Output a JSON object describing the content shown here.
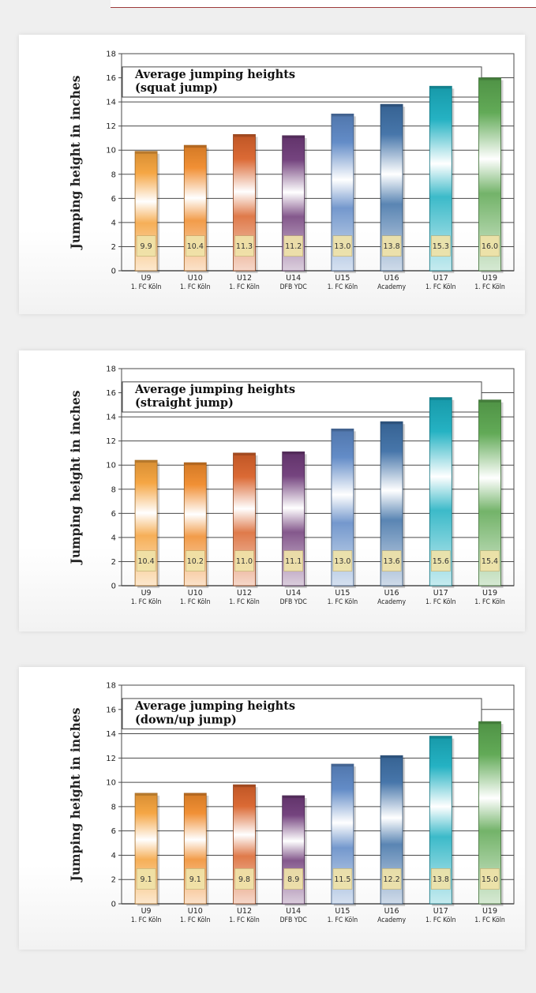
{
  "chart_data": [
    {
      "type": "bar",
      "title": "Average jumping heights",
      "subtitle": "(squat jump)",
      "ylabel": "Jumping height in inches",
      "xlabel": "",
      "ylim": [
        0,
        18
      ],
      "yticks": [
        0,
        2,
        4,
        6,
        8,
        10,
        12,
        14,
        16,
        18
      ],
      "grid": true,
      "categories": [
        "U9",
        "U10",
        "U12",
        "U14",
        "U15",
        "U16",
        "U17",
        "U19"
      ],
      "subcategories": [
        "1. FC Köln",
        "1. FC Köln",
        "1. FC Köln",
        "DFB YDC",
        "1. FC Köln",
        "Academy",
        "1. FC Köln",
        "1. FC Köln"
      ],
      "values": [
        9.9,
        10.4,
        11.3,
        11.2,
        13.0,
        13.8,
        15.3,
        16.0
      ],
      "labels": [
        "9.9",
        "10.4",
        "11.3",
        "11.2",
        "13.0",
        "13.8",
        "15.3",
        "16.0"
      ]
    },
    {
      "type": "bar",
      "title": "Average jumping heights",
      "subtitle": "(straight jump)",
      "ylabel": "Jumping height in inches",
      "xlabel": "",
      "ylim": [
        0,
        18
      ],
      "yticks": [
        0,
        2,
        4,
        6,
        8,
        10,
        12,
        14,
        16,
        18
      ],
      "grid": true,
      "categories": [
        "U9",
        "U10",
        "U12",
        "U14",
        "U15",
        "U16",
        "U17",
        "U19"
      ],
      "subcategories": [
        "1. FC Köln",
        "1. FC Köln",
        "1. FC Köln",
        "DFB YDC",
        "1. FC Köln",
        "Academy",
        "1. FC Köln",
        "1. FC Köln"
      ],
      "values": [
        10.4,
        10.2,
        11.0,
        11.1,
        13.0,
        13.6,
        15.6,
        15.4
      ],
      "labels": [
        "10.4",
        "10.2",
        "11.0",
        "11.1",
        "13.0",
        "13.6",
        "15.6",
        "15.4"
      ]
    },
    {
      "type": "bar",
      "title": "Average jumping heights",
      "subtitle": "(down/up jump)",
      "ylabel": "Jumping height in inches",
      "xlabel": "",
      "ylim": [
        0,
        18
      ],
      "yticks": [
        0,
        2,
        4,
        6,
        8,
        10,
        12,
        14,
        16,
        18
      ],
      "grid": true,
      "categories": [
        "U9",
        "U10",
        "U12",
        "U14",
        "U15",
        "U16",
        "U17",
        "U19"
      ],
      "subcategories": [
        "1. FC Köln",
        "1. FC Köln",
        "1. FC Köln",
        "DFB YDC",
        "1. FC Köln",
        "Academy",
        "1. FC Köln",
        "1. FC Köln"
      ],
      "values": [
        9.1,
        9.1,
        9.8,
        8.9,
        11.5,
        12.2,
        13.8,
        15.0
      ],
      "labels": [
        "9.1",
        "9.1",
        "9.8",
        "8.9",
        "11.5",
        "12.2",
        "13.8",
        "15.0"
      ]
    }
  ],
  "colors": {
    "bars": [
      "#f4a13a",
      "#f08a2a",
      "#d9622a",
      "#6e3a78",
      "#5b86c4",
      "#3d6fa6",
      "#1aaec0",
      "#5aa64e"
    ],
    "value_box": "#f0e3a8",
    "grid": "#4a4a4a",
    "frame": "#9c3b3b"
  }
}
